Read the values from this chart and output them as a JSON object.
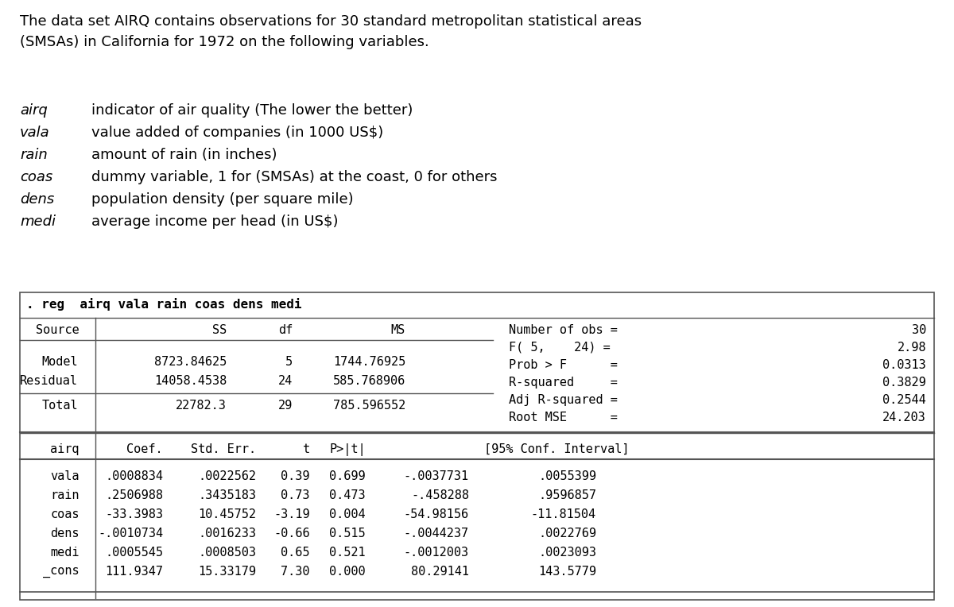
{
  "title_text": "The data set AIRQ contains observations for 30 standard metropolitan statistical areas\n(SMSAs) in California for 1972 on the following variables.",
  "variables": [
    [
      "airq",
      "indicator of air quality (The lower the better)"
    ],
    [
      "vala",
      "value added of companies (in 1000 US$)"
    ],
    [
      "rain",
      "amount of rain (in inches)"
    ],
    [
      "coas",
      "dummy variable, 1 for (SMSAs) at the coast, 0 for others"
    ],
    [
      "dens",
      "population density (per square mile)"
    ],
    [
      "medi",
      "average income per head (in US$)"
    ]
  ],
  "reg_command": ". reg  airq vala rain coas dens medi",
  "anova_headers": [
    "Source",
    "SS",
    "df",
    "MS"
  ],
  "anova_rows": [
    [
      "Model",
      "8723.84625",
      "5",
      "1744.76925"
    ],
    [
      "Residual",
      "14058.4538",
      "24",
      "585.768906"
    ],
    [
      "Total",
      "22782.3",
      "29",
      "785.596552"
    ]
  ],
  "stats_right": [
    [
      "Number of obs =",
      "30"
    ],
    [
      "F( 5,    24) =",
      "2.98"
    ],
    [
      "Prob > F      =",
      "0.0313"
    ],
    [
      "R-squared     =",
      "0.3829"
    ],
    [
      "Adj R-squared =",
      "0.2544"
    ],
    [
      "Root MSE      =",
      "24.203"
    ]
  ],
  "coef_headers": [
    "airq",
    "Coef.",
    "Std. Err.",
    "t",
    "P>|t|",
    "[95% Conf. Interval]"
  ],
  "coef_rows": [
    [
      "vala",
      ".0008834",
      ".0022562",
      "0.39",
      "0.699",
      "-.0037731",
      ".0055399"
    ],
    [
      "rain",
      ".2506988",
      ".3435183",
      "0.73",
      "0.473",
      "-.458288",
      ".9596857"
    ],
    [
      "coas",
      "-33.3983",
      "10.45752",
      "-3.19",
      "0.004",
      "-54.98156",
      "-11.81504"
    ],
    [
      "dens",
      "-.0010734",
      ".0016233",
      "-0.66",
      "0.515",
      "-.0044237",
      ".0022769"
    ],
    [
      "medi",
      ".0005545",
      ".0008503",
      "0.65",
      "0.521",
      "-.0012003",
      ".0023093"
    ],
    [
      "_cons",
      "111.9347",
      "15.33179",
      "7.30",
      "0.000",
      "80.29141",
      "143.5779"
    ]
  ],
  "bg_color": "#ffffff",
  "text_color": "#000000",
  "border_color": "#555555"
}
